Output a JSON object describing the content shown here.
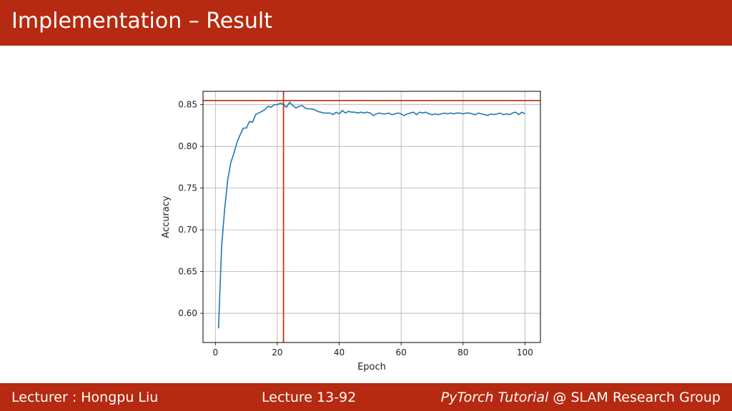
{
  "header": {
    "title": "Implementation – Result"
  },
  "footer": {
    "lecturer": "Lecturer : Hongpu Liu",
    "lecture": "Lecture 13-92",
    "course_italic": "PyTorch Tutorial",
    "group": " @ SLAM Research Group"
  },
  "colors": {
    "brand": "#b52a10",
    "line": "#1f77b4",
    "marker": "#c0391b"
  },
  "chart_data": {
    "type": "line",
    "xlabel": "Epoch",
    "ylabel": "Accuracy",
    "xlim": [
      -4,
      105
    ],
    "ylim": [
      0.565,
      0.866
    ],
    "xticks": [
      0,
      20,
      40,
      60,
      80,
      100
    ],
    "yticks": [
      0.6,
      0.65,
      0.7,
      0.75,
      0.8,
      0.85
    ],
    "grid": true,
    "max_line_y": 0.855,
    "max_line_x": 22,
    "x": [
      1,
      2,
      3,
      4,
      5,
      6,
      7,
      8,
      9,
      10,
      11,
      12,
      13,
      14,
      15,
      16,
      17,
      18,
      19,
      20,
      21,
      22,
      23,
      24,
      25,
      26,
      27,
      28,
      29,
      30,
      31,
      32,
      33,
      34,
      35,
      36,
      37,
      38,
      39,
      40,
      41,
      42,
      43,
      44,
      45,
      46,
      47,
      48,
      49,
      50,
      51,
      52,
      53,
      54,
      55,
      56,
      57,
      58,
      59,
      60,
      61,
      62,
      63,
      64,
      65,
      66,
      67,
      68,
      69,
      70,
      71,
      72,
      73,
      74,
      75,
      76,
      77,
      78,
      79,
      80,
      81,
      82,
      83,
      84,
      85,
      86,
      87,
      88,
      89,
      90,
      91,
      92,
      93,
      94,
      95,
      96,
      97,
      98,
      99,
      100
    ],
    "y": [
      0.582,
      0.68,
      0.725,
      0.76,
      0.781,
      0.792,
      0.805,
      0.814,
      0.822,
      0.822,
      0.83,
      0.829,
      0.838,
      0.84,
      0.842,
      0.844,
      0.848,
      0.847,
      0.85,
      0.85,
      0.852,
      0.85,
      0.847,
      0.853,
      0.849,
      0.846,
      0.848,
      0.849,
      0.846,
      0.845,
      0.845,
      0.844,
      0.842,
      0.841,
      0.84,
      0.84,
      0.84,
      0.838,
      0.841,
      0.839,
      0.843,
      0.84,
      0.842,
      0.841,
      0.841,
      0.84,
      0.841,
      0.84,
      0.841,
      0.84,
      0.837,
      0.839,
      0.84,
      0.839,
      0.839,
      0.84,
      0.838,
      0.839,
      0.84,
      0.839,
      0.837,
      0.839,
      0.84,
      0.841,
      0.838,
      0.841,
      0.84,
      0.841,
      0.839,
      0.838,
      0.839,
      0.838,
      0.839,
      0.84,
      0.839,
      0.84,
      0.839,
      0.84,
      0.84,
      0.839,
      0.84,
      0.84,
      0.839,
      0.838,
      0.84,
      0.839,
      0.838,
      0.837,
      0.839,
      0.838,
      0.839,
      0.84,
      0.838,
      0.839,
      0.838,
      0.84,
      0.841,
      0.838,
      0.841,
      0.839
    ]
  }
}
